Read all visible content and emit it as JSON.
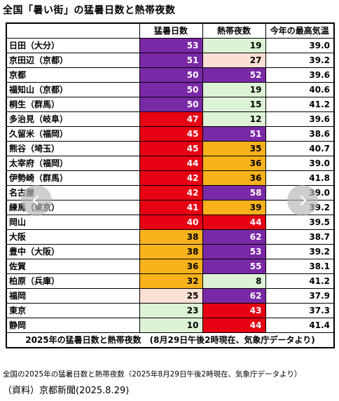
{
  "page": {
    "title": "全国「暑い街」の猛暑日数と熱帯夜数",
    "caption": "全国の2025年の猛暑日数と熱帯夜数（2025年8月29日午後2時現在、気象庁データより）",
    "source": "（資料）京都新聞(2025.8.29)"
  },
  "colors": {
    "purple": "#7a29a6",
    "red": "#e60012",
    "orange": "#f9b21b",
    "green": "#def3d6",
    "pink": "#fde0d4"
  },
  "carousel": {
    "prev_icon": "chevron-left-icon",
    "next_icon": "chevron-right-icon"
  },
  "chart_data": {
    "type": "table",
    "columns": [
      "",
      "猛暑日数",
      "熱帯夜数",
      "今年の最高気温"
    ],
    "footer": "2025年の猛暑日数と熱帯夜数　(8月29日午後2時現在、気象庁データより)",
    "rows": [
      {
        "name": "日田（大分）",
        "mosho": "53",
        "mosho_color": "purple",
        "nettai": "19",
        "nettai_color": "green",
        "max": "39.0"
      },
      {
        "name": "京田辺（京都）",
        "mosho": "51",
        "mosho_color": "purple",
        "nettai": "27",
        "nettai_color": "pink",
        "max": "39.2"
      },
      {
        "name": "京都",
        "mosho": "50",
        "mosho_color": "purple",
        "nettai": "52",
        "nettai_color": "purple",
        "max": "39.6"
      },
      {
        "name": "福知山（京都）",
        "mosho": "50",
        "mosho_color": "purple",
        "nettai": "19",
        "nettai_color": "green",
        "max": "40.6"
      },
      {
        "name": "桐生（群馬）",
        "mosho": "50",
        "mosho_color": "purple",
        "nettai": "15",
        "nettai_color": "green",
        "max": "41.2"
      },
      {
        "name": "多治見（岐阜）",
        "mosho": "47",
        "mosho_color": "red",
        "nettai": "12",
        "nettai_color": "green",
        "max": "39.6"
      },
      {
        "name": "久留米（福岡）",
        "mosho": "45",
        "mosho_color": "red",
        "nettai": "51",
        "nettai_color": "purple",
        "max": "38.6"
      },
      {
        "name": "熊谷（埼玉）",
        "mosho": "45",
        "mosho_color": "red",
        "nettai": "35",
        "nettai_color": "orange",
        "max": "40.7"
      },
      {
        "name": "太宰府（福岡）",
        "mosho": "44",
        "mosho_color": "red",
        "nettai": "36",
        "nettai_color": "orange",
        "max": "39.0"
      },
      {
        "name": "伊勢崎（群馬）",
        "mosho": "42",
        "mosho_color": "red",
        "nettai": "36",
        "nettai_color": "orange",
        "max": "41.8"
      },
      {
        "name": "名古屋",
        "mosho": "42",
        "mosho_color": "red",
        "nettai": "58",
        "nettai_color": "purple",
        "max": "39.0"
      },
      {
        "name": "練馬（東京）",
        "mosho": "41",
        "mosho_color": "red",
        "nettai": "39",
        "nettai_color": "orange",
        "max": "39.2"
      },
      {
        "name": "岡山",
        "mosho": "40",
        "mosho_color": "red",
        "nettai": "44",
        "nettai_color": "red",
        "max": "39.5"
      },
      {
        "name": "大阪",
        "mosho": "38",
        "mosho_color": "orange",
        "nettai": "62",
        "nettai_color": "purple",
        "max": "38.7"
      },
      {
        "name": "豊中（大阪）",
        "mosho": "38",
        "mosho_color": "orange",
        "nettai": "53",
        "nettai_color": "purple",
        "max": "39.2"
      },
      {
        "name": "佐賀",
        "mosho": "36",
        "mosho_color": "orange",
        "nettai": "55",
        "nettai_color": "purple",
        "max": "38.1"
      },
      {
        "name": "柏原（兵庫）",
        "mosho": "32",
        "mosho_color": "orange",
        "nettai": "8",
        "nettai_color": "green",
        "max": "41.2"
      },
      {
        "name": "福岡",
        "mosho": "25",
        "mosho_color": "pink",
        "nettai": "62",
        "nettai_color": "purple",
        "max": "37.9"
      },
      {
        "name": "東京",
        "mosho": "23",
        "mosho_color": "green",
        "nettai": "43",
        "nettai_color": "red",
        "max": "37.3"
      },
      {
        "name": "静岡",
        "mosho": "10",
        "mosho_color": "green",
        "nettai": "44",
        "nettai_color": "red",
        "max": "41.4"
      }
    ]
  }
}
